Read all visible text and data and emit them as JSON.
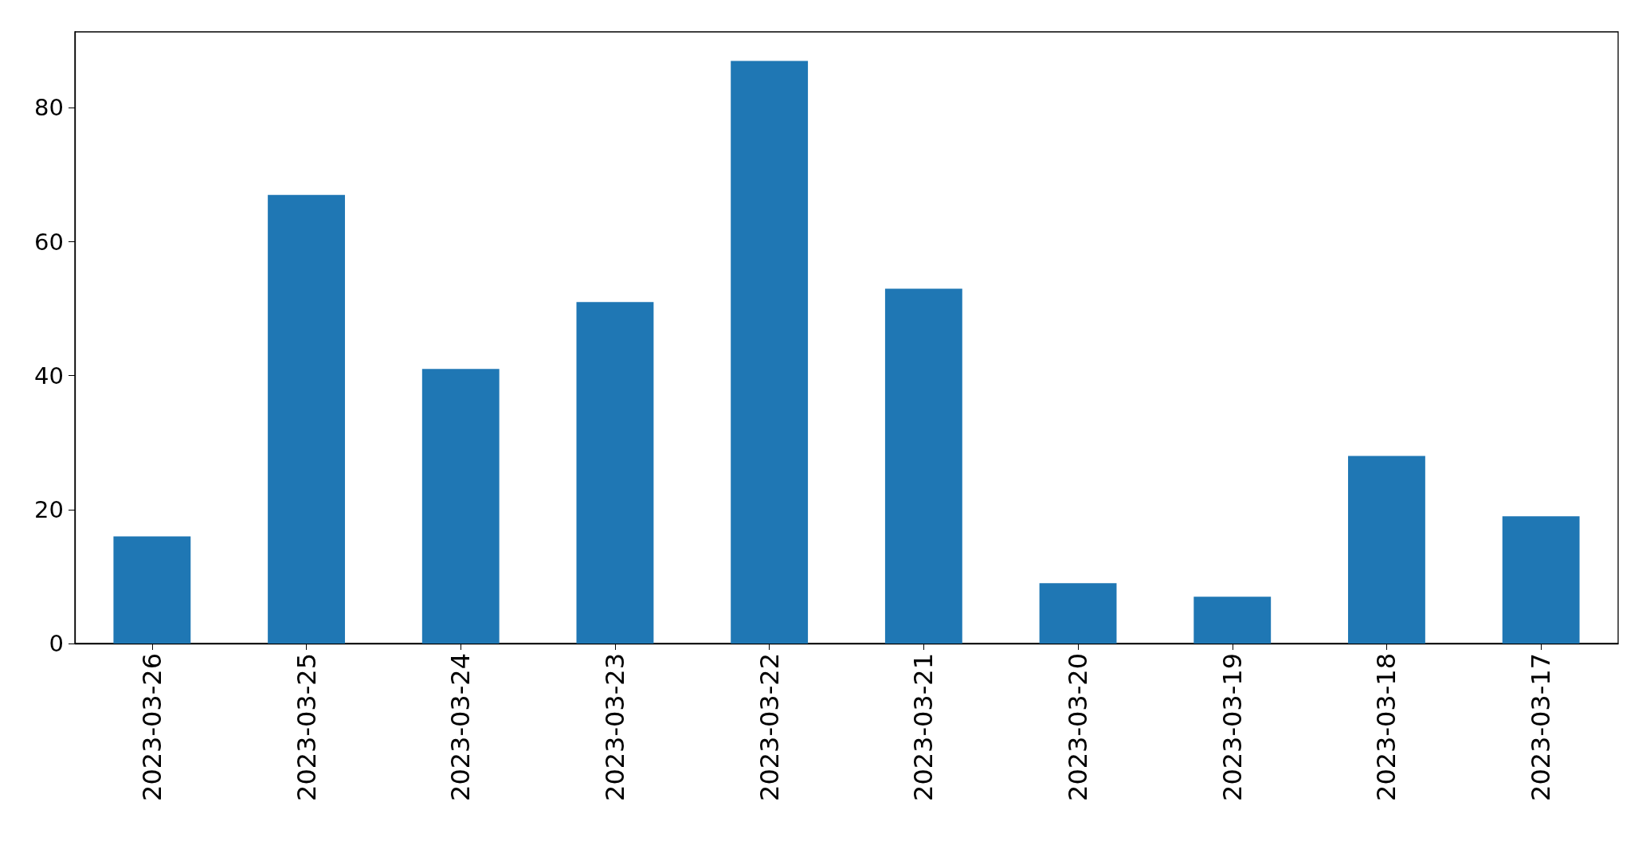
{
  "chart_data": {
    "type": "bar",
    "categories": [
      "2023-03-26",
      "2023-03-25",
      "2023-03-24",
      "2023-03-23",
      "2023-03-22",
      "2023-03-21",
      "2023-03-20",
      "2023-03-19",
      "2023-03-18",
      "2023-03-17"
    ],
    "values": [
      16,
      67,
      41,
      51,
      87,
      53,
      9,
      7,
      28,
      19
    ],
    "color": "#1f77b4",
    "ylim": [
      0,
      91.35
    ],
    "yticks": [
      0,
      20,
      40,
      60,
      80
    ]
  }
}
